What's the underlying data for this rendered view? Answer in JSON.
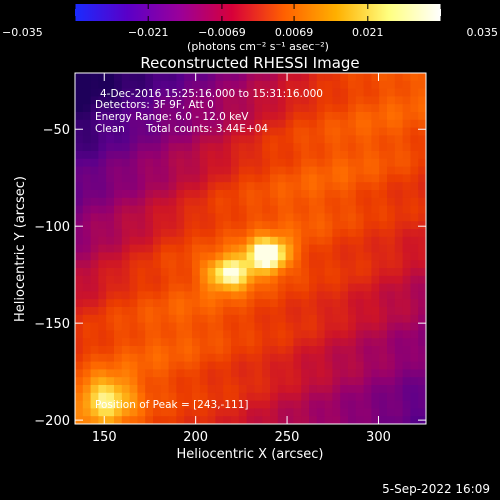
{
  "colorbar": {
    "ticks": [
      "−0.035",
      "−0.021",
      "−0.0069",
      "0.0069",
      "0.021",
      "0.035"
    ],
    "tick_values": [
      -0.035,
      -0.021,
      -0.0069,
      0.0069,
      0.021,
      0.035
    ],
    "range": [
      -0.035,
      0.035
    ],
    "unit_label": "(photons cm⁻² s⁻¹ asec⁻²)",
    "colors": [
      "#1a2bff",
      "#5a00c8",
      "#9a009a",
      "#d7003a",
      "#ff6000",
      "#ffb000",
      "#ffff80",
      "#ffffff"
    ]
  },
  "chart_data": {
    "type": "heatmap",
    "title": "Reconstructed RHESSI Image",
    "xlabel": "Heliocentric X (arcsec)",
    "ylabel": "Heliocentric Y (arcsec)",
    "xlim": [
      134,
      326
    ],
    "ylim": [
      -202,
      -21
    ],
    "xticks": [
      150,
      200,
      250,
      300
    ],
    "xtick_labels": [
      "150",
      "200",
      "250",
      "300"
    ],
    "yticks": [
      -50,
      -100,
      -150,
      -200
    ],
    "ytick_labels": [
      "−50",
      "−100",
      "−150",
      "−200"
    ],
    "annotations": {
      "time_range": "4-Dec-2016 15:25:16.000 to 15:31:16.000",
      "detectors": "Detectors: 3F 9F, Att 0",
      "energy": "Energy Range: 6.0 - 12.0 keV",
      "clean": "Clean",
      "counts": "Total counts: 3.44E+04",
      "peak": "Position of Peak = [243,-111]"
    },
    "peak": [
      243,
      -111
    ],
    "grid": false
  },
  "footer": {
    "timestamp": "5-Sep-2022 16:09"
  }
}
